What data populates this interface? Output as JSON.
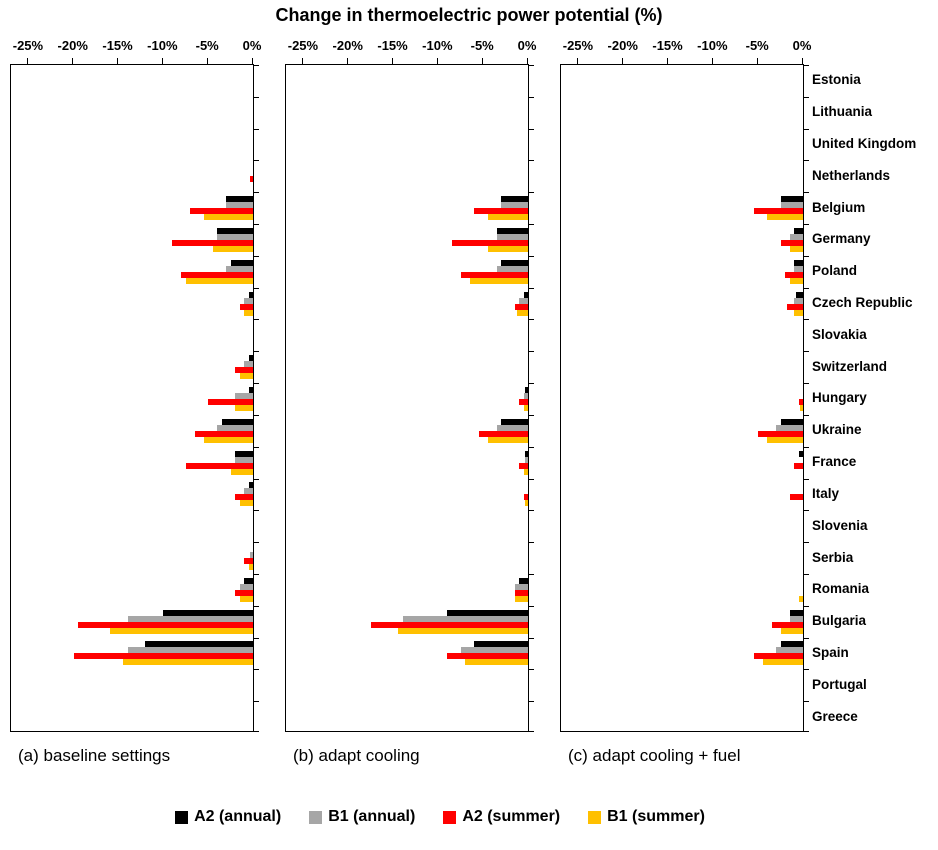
{
  "chart_data": {
    "type": "bar",
    "orientation": "horizontal",
    "title": "Change in thermoelectric power potential (%)",
    "grid": false,
    "legend_position": "bottom",
    "axis": {
      "tick_labels": [
        "-25%",
        "-20%",
        "-15%",
        "-10%",
        "-5%",
        "0%"
      ],
      "tick_values": [
        -25,
        -20,
        -15,
        -10,
        -5,
        0
      ],
      "plot_min": -27,
      "plot_max": 0
    },
    "categories": [
      "Estonia",
      "Lithuania",
      "United Kingdom",
      "Netherlands",
      "Belgium",
      "Germany",
      "Poland",
      "Czech Republic",
      "Slovakia",
      "Switzerland",
      "Hungary",
      "Ukraine",
      "France",
      "Italy",
      "Slovenia",
      "Serbia",
      "Romania",
      "Bulgaria",
      "Spain",
      "Portugal",
      "Greece"
    ],
    "legend": [
      {
        "label": "A2 (annual)",
        "color": "#000000"
      },
      {
        "label": "B1 (annual)",
        "color": "#a6a6a6"
      },
      {
        "label": "A2 (summer)",
        "color": "#ff0000"
      },
      {
        "label": "B1 (summer)",
        "color": "#ffc000"
      }
    ],
    "panels": [
      {
        "label": "(a) baseline settings",
        "series": [
          {
            "name": "A2 (annual)",
            "values": [
              0,
              0,
              0,
              0,
              -3,
              -4,
              -2.5,
              -0.5,
              0,
              -0.5,
              -0.5,
              -3.5,
              -2,
              -0.5,
              0,
              0,
              -1,
              -10,
              -12,
              0,
              0
            ]
          },
          {
            "name": "B1 (annual)",
            "values": [
              0,
              0,
              0,
              0,
              -3,
              -4,
              -3,
              -1,
              0,
              -1,
              -2,
              -4,
              -2,
              -1,
              0,
              -0.3,
              -1.5,
              -14,
              -14,
              0,
              0
            ]
          },
          {
            "name": "A2 (summer)",
            "values": [
              0,
              0,
              0,
              -0.3,
              -7,
              -9,
              -8,
              -1.5,
              0,
              -2,
              -5,
              -6.5,
              -7.5,
              -2,
              0,
              -1,
              -2,
              -19.5,
              -20,
              0,
              0
            ]
          },
          {
            "name": "B1 (summer)",
            "values": [
              0,
              0,
              0,
              0,
              -5.5,
              -4.5,
              -7.5,
              -1,
              0,
              -1.5,
              -2,
              -5.5,
              -2.5,
              -1.5,
              0,
              -0.5,
              -1.5,
              -16,
              -14.5,
              0,
              0
            ]
          }
        ]
      },
      {
        "label": "(b) adapt cooling",
        "series": [
          {
            "name": "A2 (annual)",
            "values": [
              0,
              0,
              0,
              0,
              -3,
              -3.5,
              -3,
              -0.5,
              0,
              0,
              -0.3,
              -3,
              -0.3,
              0,
              0,
              0,
              -1,
              -9,
              -6,
              0,
              0
            ]
          },
          {
            "name": "B1 (annual)",
            "values": [
              0,
              0,
              0,
              0,
              -3,
              -3.5,
              -3.5,
              -1,
              0,
              0,
              -0.5,
              -3.5,
              -0.3,
              0,
              0,
              0,
              -1.5,
              -14,
              -7.5,
              0,
              0
            ]
          },
          {
            "name": "A2 (summer)",
            "values": [
              0,
              0,
              0,
              0,
              -6,
              -8.5,
              -7.5,
              -1.5,
              0,
              0,
              -1,
              -5.5,
              -1,
              -0.5,
              0,
              0,
              -1.5,
              -17.5,
              -9,
              0,
              0
            ]
          },
          {
            "name": "B1 (summer)",
            "values": [
              0,
              0,
              0,
              0,
              -4.5,
              -4.5,
              -6.5,
              -1.2,
              0,
              0,
              -0.5,
              -4.5,
              -0.5,
              -0.3,
              0,
              0,
              -1.5,
              -14.5,
              -7,
              0,
              0
            ]
          }
        ]
      },
      {
        "label": "(c) adapt cooling + fuel",
        "series": [
          {
            "name": "A2 (annual)",
            "values": [
              0,
              0,
              0,
              0,
              -2.5,
              -1,
              -1,
              -0.8,
              0,
              0,
              0,
              -2.5,
              -0.5,
              0,
              0,
              0,
              0,
              -1.5,
              -2.5,
              0,
              0
            ]
          },
          {
            "name": "B1 (annual)",
            "values": [
              0,
              0,
              0,
              0,
              -2.5,
              -1.5,
              -1,
              -1,
              0,
              0,
              0,
              -3,
              0,
              0,
              0,
              0,
              0,
              -1.5,
              -3,
              0,
              0
            ]
          },
          {
            "name": "A2 (summer)",
            "values": [
              0,
              0,
              0,
              0,
              -5.5,
              -2.5,
              -2,
              -1.8,
              0,
              0,
              -0.5,
              -5,
              -1,
              -1.5,
              0,
              0,
              0,
              -3.5,
              -5.5,
              0,
              0
            ]
          },
          {
            "name": "B1 (summer)",
            "values": [
              0,
              0,
              0,
              0,
              -4,
              -1.5,
              -1.5,
              -1,
              0,
              0,
              -0.3,
              -4,
              0,
              0,
              0,
              0,
              -0.5,
              -2.5,
              -4.5,
              0,
              0
            ]
          }
        ]
      }
    ]
  }
}
